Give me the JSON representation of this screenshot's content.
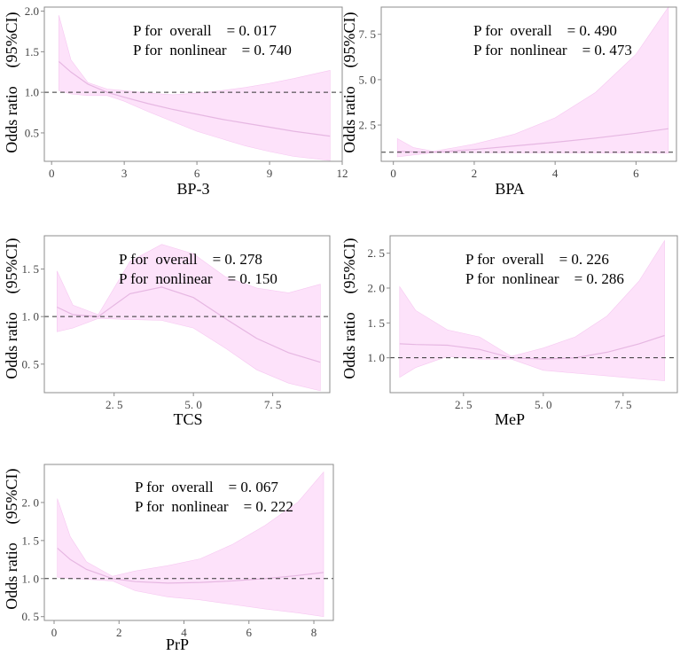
{
  "colors": {
    "band": "#fde2fa",
    "band_stroke": "#f6c8f1",
    "line": "#e6b7e2",
    "ref": "#333333",
    "frame": "#8c8c8c"
  },
  "chart_data": [
    {
      "type": "line",
      "xlabel": "BP-3",
      "ylabel": "Odds ratio",
      "ylabel_ci": "(95%CI)",
      "xlim": [
        -0.3,
        12.0
      ],
      "ylim": [
        0.15,
        2.05
      ],
      "xticks": [
        0,
        3,
        6,
        9,
        12
      ],
      "xtick_labels": [
        "0",
        "3",
        "6",
        "9",
        "12"
      ],
      "yticks": [
        0.5,
        1.0,
        1.5,
        2.0
      ],
      "ytick_labels": [
        "0.5",
        "1.0",
        "1.5",
        "2.0"
      ],
      "reference_y": 1.0,
      "annotations": [
        "P for  overall    = 0. 017",
        "P for  nonlinear    = 0. 740"
      ],
      "x": [
        0.3,
        0.8,
        1.5,
        2.3,
        3.0,
        4.0,
        5.0,
        6.0,
        7.0,
        8.0,
        9.0,
        10.0,
        11.5
      ],
      "or": [
        1.38,
        1.25,
        1.1,
        1.0,
        0.94,
        0.86,
        0.79,
        0.73,
        0.67,
        0.62,
        0.57,
        0.52,
        0.46
      ],
      "lower": [
        1.02,
        0.98,
        0.96,
        0.96,
        0.89,
        0.76,
        0.64,
        0.52,
        0.43,
        0.34,
        0.27,
        0.21,
        0.16
      ],
      "upper": [
        1.95,
        1.4,
        1.12,
        1.04,
        1.02,
        0.99,
        0.97,
        0.99,
        1.02,
        1.06,
        1.11,
        1.17,
        1.27
      ]
    },
    {
      "type": "line",
      "xlabel": "BPA",
      "ylabel": "Odds ratio",
      "ylabel_ci": "(95%CI)",
      "xlim": [
        -0.3,
        7.0
      ],
      "ylim": [
        0.5,
        9.0
      ],
      "xticks": [
        0,
        2,
        4,
        6
      ],
      "xtick_labels": [
        "0",
        "2",
        "4",
        "6"
      ],
      "yticks": [
        2.5,
        5.0,
        7.5
      ],
      "ytick_labels": [
        "2. 5",
        "5. 0",
        "7. 5"
      ],
      "reference_y": 1.0,
      "annotations": [
        "P for  overall    = 0. 490",
        "P for  nonlinear    = 0. 473"
      ],
      "x": [
        0.1,
        0.5,
        1.0,
        2.0,
        3.0,
        4.0,
        5.0,
        6.0,
        6.8
      ],
      "or": [
        1.05,
        1.02,
        1.0,
        1.15,
        1.35,
        1.55,
        1.78,
        2.05,
        2.3
      ],
      "lower": [
        0.75,
        0.85,
        0.98,
        0.98,
        0.97,
        0.97,
        0.96,
        0.96,
        0.95
      ],
      "upper": [
        1.75,
        1.25,
        1.05,
        1.45,
        2.0,
        2.9,
        4.3,
        6.4,
        9.0
      ]
    },
    {
      "type": "line",
      "xlabel": "TCS",
      "ylabel": "Odds ratio",
      "ylabel_ci": "(95%CI)",
      "xlim": [
        0.3,
        9.3
      ],
      "ylim": [
        0.2,
        1.85
      ],
      "xticks": [
        2.5,
        5.0,
        7.5
      ],
      "xtick_labels": [
        "2. 5",
        "5. 0",
        "7. 5"
      ],
      "yticks": [
        0.5,
        1.0,
        1.5
      ],
      "ytick_labels": [
        "0. 5",
        "1. 0",
        "1. 5"
      ],
      "reference_y": 1.0,
      "annotations": [
        "P for  overall    = 0. 278",
        "P for  nonlinear    = 0. 150"
      ],
      "x": [
        0.7,
        1.2,
        2.0,
        3.0,
        4.0,
        5.0,
        6.0,
        7.0,
        8.0,
        9.0
      ],
      "or": [
        1.1,
        1.02,
        1.0,
        1.24,
        1.31,
        1.2,
        0.98,
        0.77,
        0.62,
        0.52
      ],
      "lower": [
        0.84,
        0.88,
        0.98,
        0.97,
        0.96,
        0.88,
        0.67,
        0.44,
        0.3,
        0.22
      ],
      "upper": [
        1.48,
        1.12,
        1.02,
        1.58,
        1.76,
        1.66,
        1.42,
        1.3,
        1.25,
        1.34
      ]
    },
    {
      "type": "line",
      "xlabel": "MeP",
      "ylabel": "Odds ratio",
      "ylabel_ci": "(95%CI)",
      "xlim": [
        0.2,
        9.2
      ],
      "ylim": [
        0.5,
        2.75
      ],
      "xticks": [
        2.5,
        5.0,
        7.5
      ],
      "xtick_labels": [
        "2. 5",
        "5. 0",
        "7. 5"
      ],
      "yticks": [
        1.0,
        1.5,
        2.0,
        2.5
      ],
      "ytick_labels": [
        "1. 0",
        "1. 5",
        "2. 0",
        "2. 5"
      ],
      "reference_y": 1.0,
      "annotations": [
        "P for  overall    = 0. 226",
        "P for  nonlinear    = 0. 286"
      ],
      "x": [
        0.5,
        1.0,
        2.0,
        3.0,
        4.0,
        5.0,
        6.0,
        7.0,
        8.0,
        8.8
      ],
      "or": [
        1.2,
        1.19,
        1.18,
        1.12,
        1.0,
        0.98,
        1.0,
        1.08,
        1.2,
        1.32
      ],
      "lower": [
        0.72,
        0.86,
        1.02,
        0.98,
        0.98,
        0.82,
        0.78,
        0.74,
        0.7,
        0.67
      ],
      "upper": [
        2.02,
        1.68,
        1.4,
        1.3,
        1.02,
        1.14,
        1.3,
        1.6,
        2.1,
        2.68
      ]
    },
    {
      "type": "line",
      "xlabel": "PrP",
      "ylabel": "Odds ratio",
      "ylabel_ci": "(95%CI)",
      "xlim": [
        -0.3,
        8.6
      ],
      "ylim": [
        0.45,
        2.5
      ],
      "xticks": [
        0,
        2,
        4,
        6,
        8
      ],
      "xtick_labels": [
        "0",
        "2",
        "4",
        "6",
        "8"
      ],
      "yticks": [
        0.5,
        1.0,
        1.5,
        2.0
      ],
      "ytick_labels": [
        "0. 5",
        "1. 0",
        "1. 5",
        "2. 0"
      ],
      "reference_y": 1.0,
      "annotations": [
        "P for  overall    = 0. 067",
        "P for  nonlinear    = 0. 222"
      ],
      "x": [
        0.1,
        0.5,
        1.0,
        1.8,
        2.5,
        3.5,
        4.5,
        5.5,
        6.5,
        7.5,
        8.3
      ],
      "or": [
        1.4,
        1.25,
        1.12,
        1.0,
        0.96,
        0.94,
        0.95,
        0.97,
        1.0,
        1.04,
        1.08
      ],
      "lower": [
        1.02,
        1.0,
        0.99,
        0.97,
        0.84,
        0.76,
        0.72,
        0.66,
        0.6,
        0.55,
        0.5
      ],
      "upper": [
        2.05,
        1.55,
        1.22,
        1.03,
        1.1,
        1.17,
        1.26,
        1.45,
        1.7,
        2.0,
        2.4
      ]
    }
  ]
}
